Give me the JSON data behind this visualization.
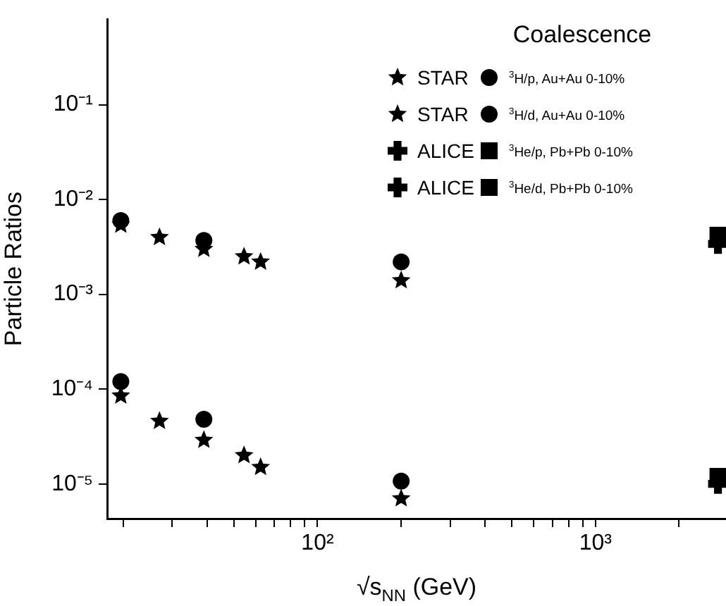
{
  "chart_data": {
    "type": "scatter",
    "xlabel": "√s$_{NN}$ (GeV)",
    "ylabel": "Particle Ratios",
    "legend_title": "Coalescence",
    "legend": "top right",
    "log": "xy",
    "grid": false,
    "xlim": [
      17.5,
      2950
    ],
    "ylim": [
      4.3e-06,
      0.8
    ],
    "xticks": [
      {
        "value": 20,
        "label": null
      },
      {
        "value": 30,
        "label": null
      },
      {
        "value": 40,
        "label": null
      },
      {
        "value": 50,
        "label": null
      },
      {
        "value": 60,
        "label": null
      },
      {
        "value": 70,
        "label": null
      },
      {
        "value": 80,
        "label": null
      },
      {
        "value": 90,
        "label": null
      },
      {
        "value": 100,
        "label": "10²"
      },
      {
        "value": 200,
        "label": null
      },
      {
        "value": 300,
        "label": null
      },
      {
        "value": 400,
        "label": null
      },
      {
        "value": 500,
        "label": null
      },
      {
        "value": 600,
        "label": null
      },
      {
        "value": 700,
        "label": null
      },
      {
        "value": 800,
        "label": null
      },
      {
        "value": 900,
        "label": null
      },
      {
        "value": 1000,
        "label": "10³"
      },
      {
        "value": 2000,
        "label": null
      }
    ],
    "yticks": [
      {
        "value": 1e-05,
        "label": "10⁻⁵"
      },
      {
        "value": 0.0001,
        "label": "10⁻⁴"
      },
      {
        "value": 0.001,
        "label": "10⁻³"
      },
      {
        "value": 0.01,
        "label": "10⁻²"
      },
      {
        "value": 0.1,
        "label": "10⁻¹"
      }
    ],
    "series": [
      {
        "name": "STAR",
        "color": "#000000",
        "marker": "star",
        "x": [
          19.6,
          27,
          39,
          54.4,
          62.4,
          200
        ],
        "values": [
          8.5e-05,
          4.6e-05,
          2.9e-05,
          2e-05,
          1.5e-05,
          7e-06
        ]
      },
      {
        "name": "$^{3}$H/p, Au+Au 0-10%",
        "color": "#000000",
        "marker": "circle",
        "x": [
          19.6,
          39,
          200
        ],
        "values": [
          0.00012,
          4.8e-05,
          1.07e-05
        ]
      },
      {
        "name": "STAR",
        "color": "#000000",
        "marker": "star",
        "x": [
          19.6,
          27,
          39,
          54.4,
          62.4,
          200
        ],
        "values": [
          0.0054,
          0.004,
          0.003,
          0.0025,
          0.0022,
          0.0014
        ]
      },
      {
        "name": "$^{3}$H/d, Au+Au 0-10%",
        "color": "#000000",
        "marker": "circle",
        "x": [
          19.6,
          39,
          200
        ],
        "values": [
          0.006,
          0.0037,
          0.0022
        ]
      },
      {
        "name": "ALICE",
        "color": "#000000",
        "marker": "cross",
        "x": [
          2760
        ],
        "values": [
          0.0034
        ]
      },
      {
        "name": "$^{3}$He/p, Pb+Pb 0-10%",
        "color": "#000000",
        "marker": "square",
        "x": [
          2760
        ],
        "values": [
          0.0042
        ]
      },
      {
        "name": "ALICE",
        "color": "#000000",
        "marker": "cross",
        "x": [
          2760
        ],
        "values": [
          1e-05
        ]
      },
      {
        "name": "$^{3}$He/d, Pb+Pb 0-10%",
        "color": "#000000",
        "marker": "square",
        "x": [
          2760
        ],
        "values": [
          1.2e-05
        ]
      }
    ]
  }
}
